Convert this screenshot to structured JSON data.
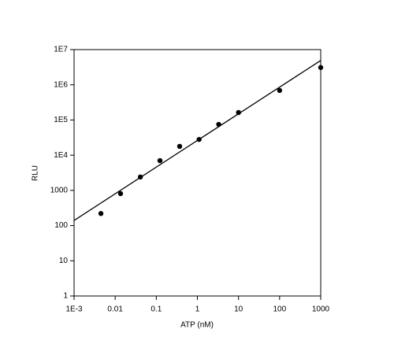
{
  "chart_data": {
    "type": "scatter",
    "x_label": "ATP (nM)",
    "y_label": "RLU",
    "log_x": true,
    "log_y": true,
    "color": "#000000",
    "x": [
      0.0045,
      0.0135,
      0.041,
      0.123,
      0.37,
      1.1,
      3.3,
      10,
      100,
      1000
    ],
    "y": [
      220,
      810,
      2400,
      7000,
      17800,
      28000,
      75000,
      163000,
      690000,
      3100000
    ],
    "fit": {
      "x": [
        0.001,
        1000
      ],
      "y": [
        140,
        4900000
      ]
    },
    "xlim": [
      0.001,
      1000
    ],
    "xticks": [
      {
        "value": 0.001,
        "label": "1E-3"
      },
      0.01,
      0.1,
      1,
      10,
      100,
      1000
    ],
    "ylim": [
      1,
      10000000
    ],
    "yticks": [
      1,
      10,
      100,
      1000,
      {
        "value": 10000,
        "label": "1E4"
      },
      {
        "value": 100000,
        "label": "1E5"
      },
      {
        "value": 1000000,
        "label": "1E6"
      },
      {
        "value": 10000000,
        "label": "1E7"
      }
    ]
  }
}
